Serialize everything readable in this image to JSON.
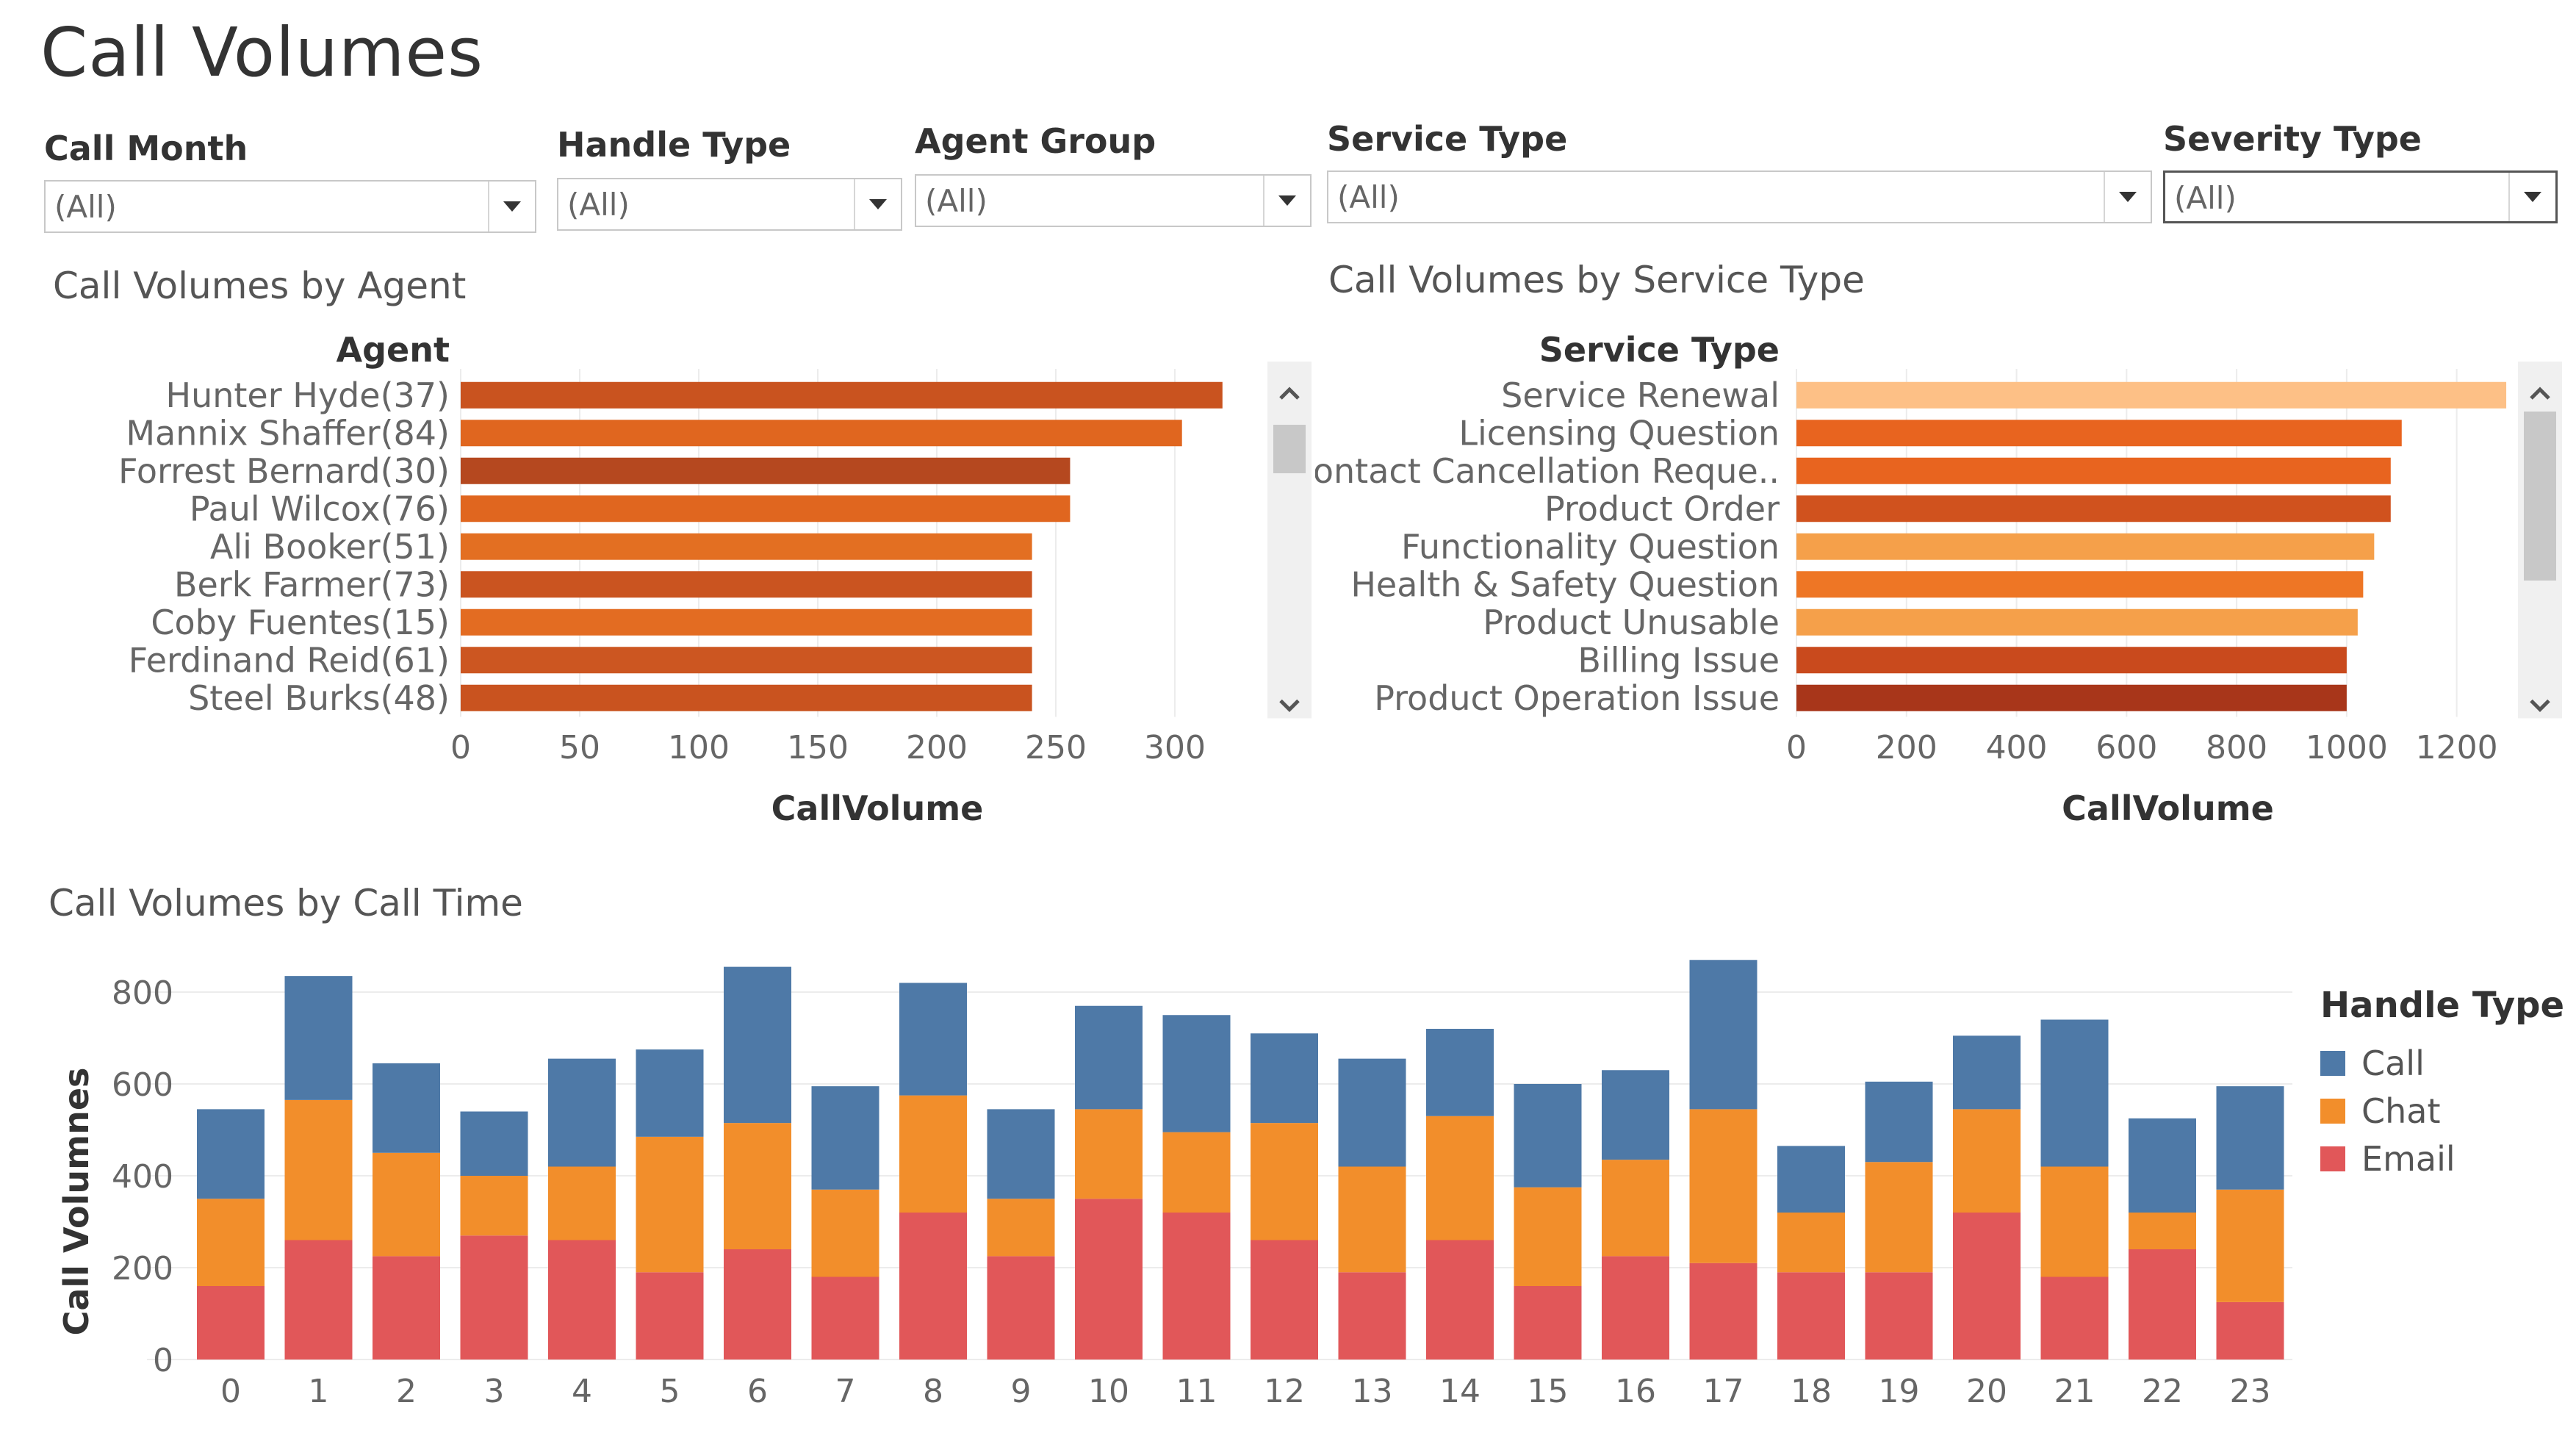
{
  "title": "Call Volumes",
  "filters": [
    {
      "label": "Call Month",
      "value": "(All)"
    },
    {
      "label": "Handle Type",
      "value": "(All)"
    },
    {
      "label": "Agent Group",
      "value": "(All)"
    },
    {
      "label": "Service Type",
      "value": "(All)"
    },
    {
      "label": "Severity Type",
      "value": "(All)"
    }
  ],
  "colors": {
    "call": "#4e79a7",
    "chat": "#f28e2b",
    "email": "#e15759"
  },
  "chart_data": [
    {
      "type": "bar",
      "orientation": "horizontal",
      "title": "Call Volumes by Agent",
      "category_header": "Agent",
      "xlabel": "CallVolume",
      "xlim": [
        0,
        350
      ],
      "xticks": [
        0,
        50,
        100,
        150,
        200,
        250,
        300
      ],
      "categories": [
        "Hunter Hyde(37)",
        "Mannix Shaffer(84)",
        "Forrest Bernard(30)",
        "Paul Wilcox(76)",
        "Ali Booker(51)",
        "Berk Farmer(73)",
        "Coby Fuentes(15)",
        "Ferdinand Reid(61)",
        "Steel Burks(48)"
      ],
      "values": [
        320,
        303,
        256,
        256,
        240,
        240,
        240,
        240,
        240
      ],
      "colors": [
        "#c9531f",
        "#e0661f",
        "#b5481f",
        "#e0661f",
        "#e36f22",
        "#ca5420",
        "#e36c22",
        "#cc5621",
        "#c9531f"
      ],
      "scrollbar": true
    },
    {
      "type": "bar",
      "orientation": "horizontal",
      "title": "Call Volumes by Service Type",
      "category_header": "Service Type",
      "xlabel": "CallVolume",
      "xlim": [
        0,
        1350
      ],
      "xticks": [
        0,
        200,
        400,
        600,
        800,
        1000,
        1200
      ],
      "categories": [
        "Service Renewal",
        "Licensing Question",
        "Contact Cancellation Reque..",
        "Product Order",
        "Functionality Question",
        "Health & Safety Question",
        "Product Unusable",
        "Billing Issue",
        "Product Operation Issue"
      ],
      "values": [
        1290,
        1100,
        1080,
        1080,
        1050,
        1030,
        1020,
        1000,
        1000
      ],
      "colors": [
        "#fdc086",
        "#e8641f",
        "#e8641f",
        "#d0521e",
        "#f5a04a",
        "#ee7625",
        "#f5a04a",
        "#c94a1d",
        "#a8361a"
      ],
      "scrollbar": true
    },
    {
      "type": "bar",
      "stacked": true,
      "title": "Call Volumes by Call Time",
      "ylabel": "Call Volumnes",
      "xlabel": "",
      "ylim": [
        0,
        880
      ],
      "yticks": [
        0,
        200,
        400,
        600,
        800
      ],
      "categories": [
        "0",
        "1",
        "2",
        "3",
        "4",
        "5",
        "6",
        "7",
        "8",
        "9",
        "10",
        "11",
        "12",
        "13",
        "14",
        "15",
        "16",
        "17",
        "18",
        "19",
        "20",
        "21",
        "22",
        "23"
      ],
      "series": [
        {
          "name": "Email",
          "values": [
            160,
            260,
            225,
            270,
            260,
            190,
            240,
            180,
            320,
            225,
            350,
            320,
            260,
            190,
            260,
            160,
            225,
            210,
            190,
            190,
            320,
            180,
            240,
            125
          ]
        },
        {
          "name": "Chat",
          "values": [
            190,
            305,
            225,
            130,
            160,
            295,
            275,
            190,
            255,
            125,
            195,
            175,
            255,
            230,
            270,
            215,
            210,
            335,
            130,
            240,
            225,
            240,
            80,
            245
          ]
        },
        {
          "name": "Call",
          "values": [
            195,
            270,
            195,
            140,
            235,
            190,
            340,
            225,
            245,
            195,
            225,
            255,
            195,
            235,
            190,
            225,
            195,
            325,
            145,
            175,
            160,
            320,
            205,
            225
          ]
        }
      ],
      "legend_title": "Handle Type",
      "legend_order": [
        "Call",
        "Chat",
        "Email"
      ],
      "legend_position": "right"
    }
  ]
}
